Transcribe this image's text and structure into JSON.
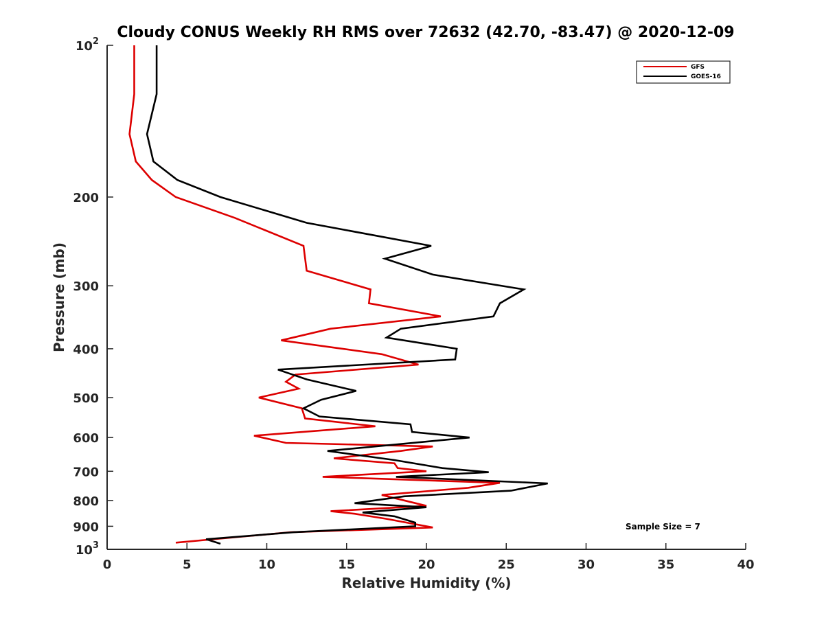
{
  "chart_data": {
    "type": "line",
    "title": "Cloudy CONUS Weekly RH RMS over 72632 (42.70, -83.47) @ 2020-12-09",
    "xlabel": "Relative Humidity (%)",
    "ylabel": "Pressure (mb)",
    "xlim": [
      0,
      40
    ],
    "ylim": [
      100,
      1000
    ],
    "y_scale": "log",
    "y_reversed": true,
    "x_ticks": [
      0,
      5,
      10,
      15,
      20,
      25,
      30,
      35,
      40
    ],
    "y_ticks": [
      {
        "value": 100,
        "base": "10",
        "exp": "2"
      },
      {
        "value": 200,
        "label": "200"
      },
      {
        "value": 300,
        "label": "300"
      },
      {
        "value": 400,
        "label": "400"
      },
      {
        "value": 500,
        "label": "500"
      },
      {
        "value": 600,
        "label": "600"
      },
      {
        "value": 700,
        "label": "700"
      },
      {
        "value": 800,
        "label": "800"
      },
      {
        "value": 900,
        "label": "900"
      },
      {
        "value": 1000,
        "base": "10",
        "exp": "3"
      }
    ],
    "legend_position": "top-right",
    "annotation": "Sample Size = 7",
    "series": [
      {
        "name": "GFS",
        "color": "#dd0000",
        "points": [
          [
            1.7,
            100
          ],
          [
            1.7,
            125
          ],
          [
            1.4,
            150
          ],
          [
            1.8,
            170
          ],
          [
            2.8,
            185
          ],
          [
            4.3,
            200
          ],
          [
            8.0,
            220
          ],
          [
            12.3,
            250
          ],
          [
            12.5,
            280
          ],
          [
            16.5,
            305
          ],
          [
            16.4,
            325
          ],
          [
            20.9,
            345
          ],
          [
            14.0,
            365
          ],
          [
            10.9,
            385
          ],
          [
            17.2,
            410
          ],
          [
            19.5,
            430
          ],
          [
            11.8,
            450
          ],
          [
            11.2,
            465
          ],
          [
            12.0,
            480
          ],
          [
            9.5,
            500
          ],
          [
            12.2,
            525
          ],
          [
            12.4,
            550
          ],
          [
            16.8,
            570
          ],
          [
            9.2,
            595
          ],
          [
            11.2,
            615
          ],
          [
            20.4,
            625
          ],
          [
            18.4,
            638
          ],
          [
            14.2,
            660
          ],
          [
            18.0,
            675
          ],
          [
            18.2,
            690
          ],
          [
            20.0,
            700
          ],
          [
            13.5,
            718
          ],
          [
            24.6,
            738
          ],
          [
            22.6,
            755
          ],
          [
            17.2,
            780
          ],
          [
            20.0,
            820
          ],
          [
            14.0,
            840
          ],
          [
            15.5,
            850
          ],
          [
            17.5,
            870
          ],
          [
            20.4,
            905
          ],
          [
            11.5,
            925
          ],
          [
            8.2,
            945
          ],
          [
            4.3,
            970
          ]
        ]
      },
      {
        "name": "GOES-16",
        "color": "#000000",
        "points": [
          [
            3.1,
            100
          ],
          [
            3.1,
            125
          ],
          [
            2.5,
            150
          ],
          [
            2.9,
            170
          ],
          [
            4.4,
            185
          ],
          [
            7.1,
            200
          ],
          [
            12.5,
            225
          ],
          [
            20.3,
            250
          ],
          [
            17.4,
            265
          ],
          [
            20.4,
            285
          ],
          [
            26.1,
            305
          ],
          [
            24.6,
            325
          ],
          [
            24.2,
            345
          ],
          [
            18.4,
            365
          ],
          [
            17.5,
            380
          ],
          [
            21.9,
            400
          ],
          [
            21.8,
            420
          ],
          [
            10.7,
            440
          ],
          [
            12.5,
            460
          ],
          [
            15.6,
            485
          ],
          [
            13.4,
            505
          ],
          [
            12.3,
            525
          ],
          [
            13.3,
            545
          ],
          [
            19.0,
            565
          ],
          [
            19.1,
            585
          ],
          [
            22.7,
            600
          ],
          [
            13.8,
            638
          ],
          [
            18.0,
            665
          ],
          [
            21.0,
            690
          ],
          [
            23.9,
            703
          ],
          [
            18.1,
            718
          ],
          [
            27.6,
            740
          ],
          [
            25.3,
            765
          ],
          [
            18.6,
            785
          ],
          [
            15.5,
            810
          ],
          [
            20.0,
            825
          ],
          [
            16.0,
            845
          ],
          [
            18.0,
            860
          ],
          [
            19.3,
            885
          ],
          [
            19.3,
            900
          ],
          [
            11.7,
            925
          ],
          [
            6.2,
            955
          ],
          [
            7.1,
            975
          ]
        ]
      }
    ]
  }
}
